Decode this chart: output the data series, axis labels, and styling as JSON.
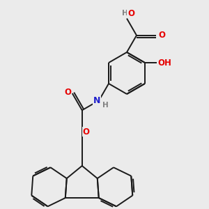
{
  "background_color": "#ebebeb",
  "bond_color": "#1a1a1a",
  "atom_colors": {
    "O": "#e60000",
    "N": "#2020cc",
    "H": "#808080",
    "C": "#1a1a1a"
  },
  "figsize": [
    3.0,
    3.0
  ],
  "dpi": 100
}
